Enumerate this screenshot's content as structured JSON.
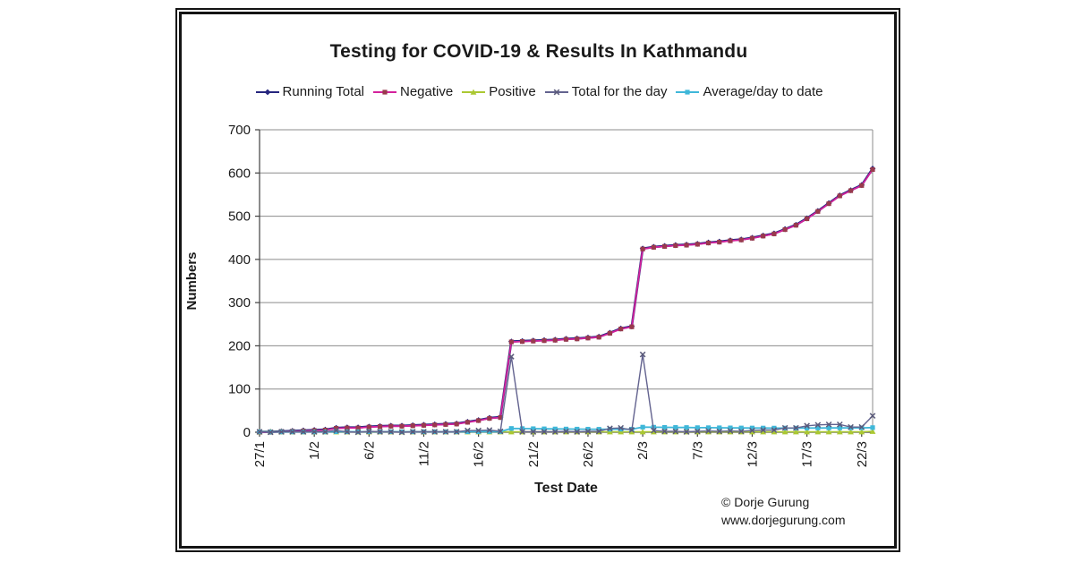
{
  "chart_data": {
    "type": "line",
    "title": "Testing for COVID-19 & Results In Kathmandu",
    "xlabel": "Test Date",
    "ylabel": "Numbers",
    "ylim": [
      0,
      700
    ],
    "ytick_interval": 100,
    "grid": true,
    "legend_position": "top",
    "xtick_every": 5,
    "x_dates": [
      "27/1",
      "28/1",
      "29/1",
      "30/1",
      "31/1",
      "1/2",
      "2/2",
      "3/2",
      "4/2",
      "5/2",
      "6/2",
      "7/2",
      "8/2",
      "9/2",
      "10/2",
      "11/2",
      "12/2",
      "13/2",
      "14/2",
      "15/2",
      "16/2",
      "17/2",
      "18/2",
      "19/2",
      "20/2",
      "21/2",
      "22/2",
      "23/2",
      "24/2",
      "25/2",
      "26/2",
      "27/2",
      "28/2",
      "29/2",
      "1/3",
      "2/3",
      "3/3",
      "4/3",
      "5/3",
      "6/3",
      "7/3",
      "8/3",
      "9/3",
      "10/3",
      "11/3",
      "12/3",
      "13/3",
      "14/3",
      "15/3",
      "16/3",
      "17/3",
      "18/3",
      "19/3",
      "20/3",
      "21/3",
      "22/3",
      "23/3"
    ],
    "series": [
      {
        "key": "running_total",
        "name": "Running Total",
        "color": "#26267e",
        "marker": "diamond",
        "marker_color": "#26267e",
        "line_width": 2.6,
        "values": [
          1,
          1,
          2,
          3,
          4,
          5,
          6,
          10,
          11,
          11,
          13,
          14,
          15,
          15,
          16,
          17,
          18,
          19,
          20,
          24,
          28,
          33,
          35,
          210,
          211,
          212,
          213,
          214,
          216,
          217,
          219,
          221,
          230,
          240,
          245,
          425,
          429,
          431,
          433,
          434,
          436,
          439,
          441,
          444,
          446,
          450,
          455,
          460,
          470,
          480,
          495,
          512,
          530,
          548,
          560,
          572,
          610
        ]
      },
      {
        "key": "negative",
        "name": "Negative",
        "color": "#d4219c",
        "marker": "square",
        "marker_color": "#993a4d",
        "line_width": 1.8,
        "values": [
          0,
          0,
          1,
          2,
          3,
          4,
          5,
          9,
          10,
          10,
          12,
          13,
          14,
          14,
          15,
          16,
          17,
          18,
          19,
          23,
          27,
          32,
          34,
          209,
          210,
          211,
          212,
          213,
          215,
          216,
          218,
          220,
          229,
          239,
          244,
          424,
          428,
          430,
          432,
          433,
          435,
          438,
          440,
          443,
          445,
          449,
          454,
          459,
          469,
          479,
          494,
          511,
          529,
          547,
          559,
          571,
          608
        ]
      },
      {
        "key": "positive",
        "name": "Positive",
        "color": "#abc832",
        "marker": "triangle",
        "marker_color": "#abc832",
        "line_width": 1.6,
        "values": [
          1,
          1,
          1,
          1,
          1,
          1,
          1,
          1,
          1,
          1,
          1,
          1,
          1,
          1,
          1,
          1,
          1,
          1,
          1,
          1,
          1,
          1,
          1,
          1,
          1,
          1,
          1,
          1,
          1,
          1,
          1,
          1,
          1,
          1,
          1,
          1,
          1,
          1,
          1,
          1,
          1,
          1,
          1,
          1,
          1,
          1,
          1,
          1,
          1,
          1,
          1,
          1,
          1,
          1,
          1,
          1,
          2
        ]
      },
      {
        "key": "total_for_day",
        "name": "Total for the day",
        "color": "#63638f",
        "marker": "cross",
        "marker_color": "#5a5a7a",
        "line_width": 1.4,
        "values": [
          1,
          0,
          1,
          1,
          1,
          1,
          1,
          4,
          1,
          0,
          2,
          1,
          1,
          0,
          1,
          1,
          1,
          1,
          1,
          4,
          4,
          5,
          2,
          175,
          1,
          1,
          1,
          1,
          2,
          1,
          2,
          2,
          9,
          10,
          5,
          180,
          4,
          2,
          2,
          1,
          2,
          3,
          2,
          3,
          2,
          4,
          5,
          5,
          10,
          10,
          15,
          17,
          18,
          18,
          12,
          12,
          38
        ]
      },
      {
        "key": "average",
        "name": "Average/day to date",
        "color": "#3fb7d9",
        "marker": "square",
        "marker_color": "#3fb7d9",
        "line_width": 1.8,
        "values": [
          1,
          0.5,
          0.7,
          0.8,
          0.8,
          0.8,
          0.9,
          1.3,
          1.2,
          1.1,
          1.2,
          1.2,
          1.2,
          1.1,
          1.1,
          1.1,
          1.1,
          1.1,
          1.1,
          1.2,
          1.3,
          1.5,
          1.5,
          8.8,
          8.4,
          8.2,
          7.9,
          7.6,
          7.4,
          7.2,
          7.1,
          6.9,
          7,
          7.1,
          7,
          11.8,
          11.6,
          11.3,
          11.1,
          10.9,
          10.6,
          10.5,
          10.3,
          10.1,
          9.9,
          9.8,
          9.7,
          9.6,
          9.6,
          9.6,
          9.7,
          9.8,
          10,
          10.1,
          10.2,
          10.2,
          10.7
        ]
      }
    ]
  },
  "attribution": {
    "line1": "© Dorje Gurung",
    "line2": "www.dorjegurung.com"
  }
}
